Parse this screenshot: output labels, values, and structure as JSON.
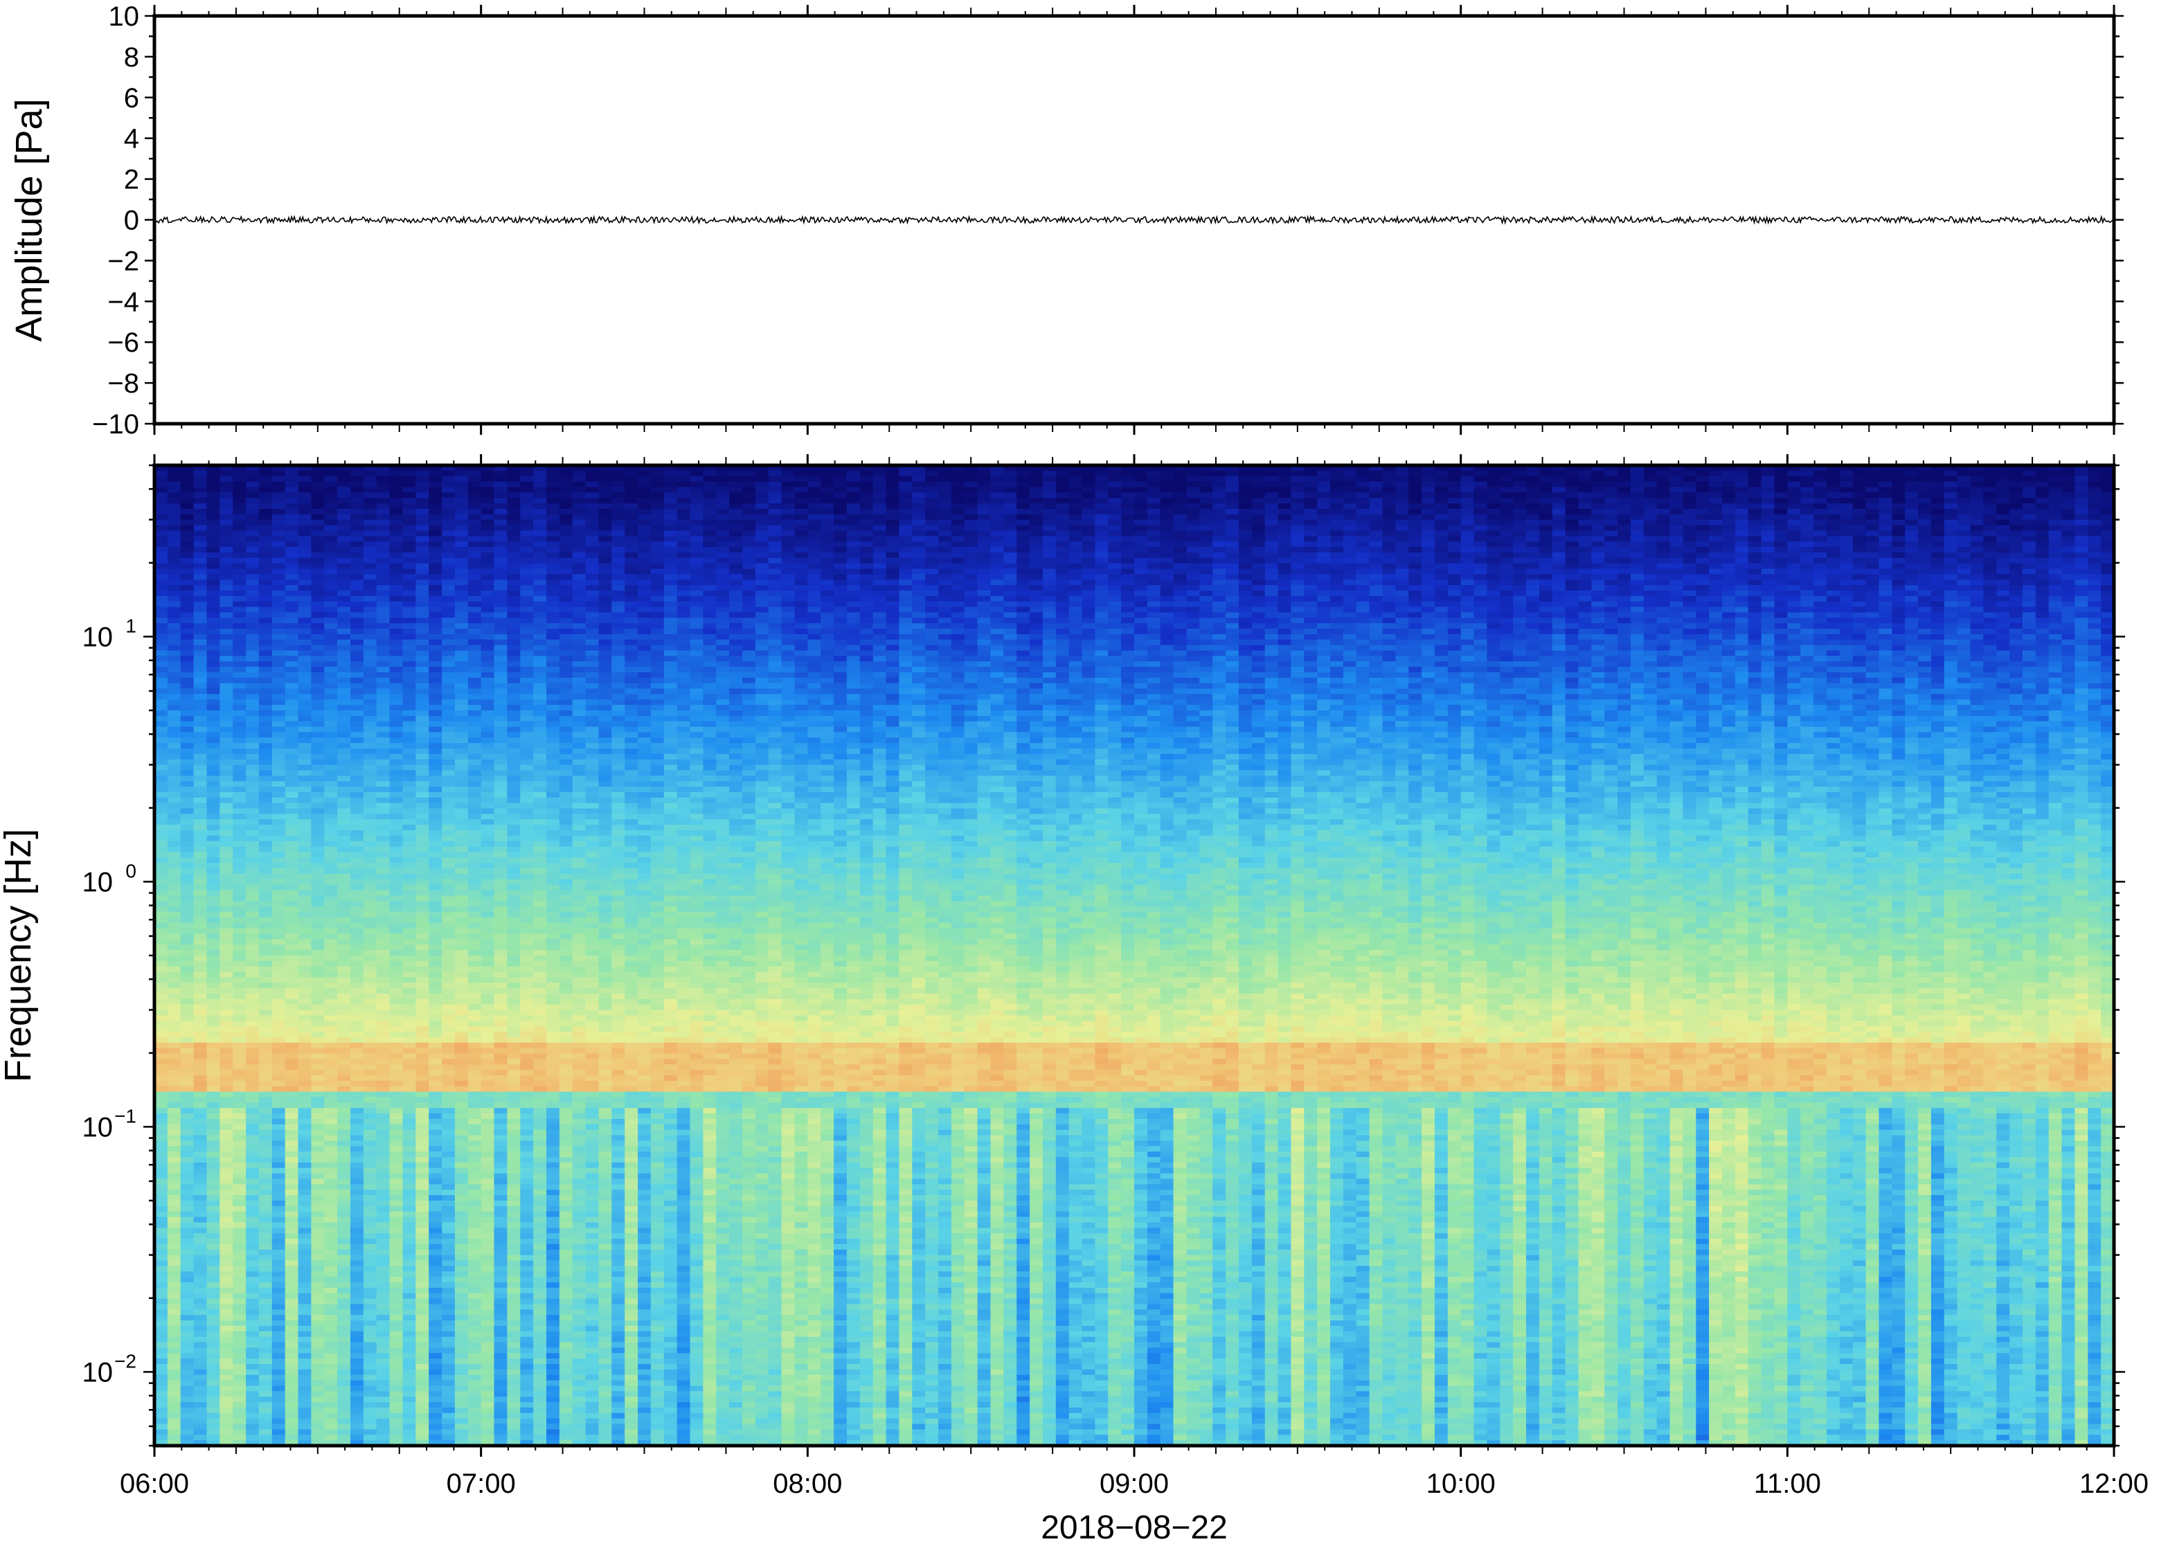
{
  "chart_data": [
    {
      "type": "line",
      "panel": "waveform",
      "ylabel": "Amplitude [Pa]",
      "ylim": [
        -10,
        10
      ],
      "yticks": [
        10,
        8,
        6,
        4,
        2,
        0,
        -2,
        -4,
        -6,
        -8,
        -10
      ],
      "ytick_labels": [
        "10",
        "8",
        "6",
        "4",
        "2",
        "0",
        "−2",
        "−4",
        "−6",
        "−8",
        "−10"
      ],
      "series": [
        {
          "values_description_mean": 0,
          "noise_amplitude": 0.15,
          "color": "#000000"
        }
      ]
    },
    {
      "type": "heatmap",
      "panel": "spectrogram",
      "ylabel": "Frequency [Hz]",
      "yscale": "log",
      "ylim": [
        0.005,
        50
      ],
      "yticks": [
        0.01,
        0.1,
        1,
        10
      ],
      "ytick_base": [
        "10",
        "10",
        "10",
        "10"
      ],
      "ytick_exp": [
        "−2",
        "−1",
        "0",
        "1"
      ],
      "colormap": "jet-like",
      "dominant_band_hz": [
        0.14,
        0.22
      ],
      "colors": [
        "#0a0a6e",
        "#1430c8",
        "#1e8cf0",
        "#5ad2e6",
        "#96e6aa",
        "#e6f096",
        "#f0c878",
        "#f08c50"
      ]
    }
  ],
  "x_axis": {
    "xlabel": "2018−08−22",
    "xlim": [
      "06:00",
      "12:00"
    ],
    "xtick_labels": [
      "06:00",
      "07:00",
      "08:00",
      "09:00",
      "10:00",
      "11:00",
      "12:00"
    ]
  }
}
